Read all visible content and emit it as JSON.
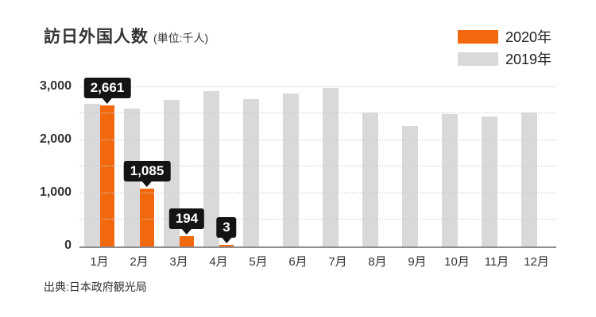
{
  "header": {
    "title": "訪日外国人数",
    "unit_note": "(単位:千人)"
  },
  "legend": {
    "position": "top-right",
    "items": [
      {
        "label": "2020年",
        "color": "#F2690D"
      },
      {
        "label": "2019年",
        "color": "#D9D9DB"
      }
    ]
  },
  "source": "出典:日本政府観光局",
  "chart_data": {
    "type": "bar",
    "title": "訪日外国人数",
    "unit": "千人",
    "categories": [
      "1月",
      "2月",
      "3月",
      "4月",
      "5月",
      "6月",
      "7月",
      "8月",
      "9月",
      "10月",
      "11月",
      "12月"
    ],
    "series": [
      {
        "name": "2020年",
        "color": "#F2690D",
        "values": [
          2661,
          1085,
          194,
          3,
          null,
          null,
          null,
          null,
          null,
          null,
          null,
          null
        ],
        "value_labels": [
          "2,661",
          "1,085",
          "194",
          "3",
          null,
          null,
          null,
          null,
          null,
          null,
          null,
          null
        ]
      },
      {
        "name": "2019年",
        "color": "#D9D9DB",
        "values": [
          2689,
          2604,
          2760,
          2927,
          2773,
          2880,
          2991,
          2520,
          2273,
          2497,
          2441,
          2526
        ]
      }
    ],
    "ylim": [
      0,
      3000
    ],
    "yticks": [
      {
        "value": 0,
        "label": "0"
      },
      {
        "value": 1000,
        "label": "1,000"
      },
      {
        "value": 2000,
        "label": "2,000"
      },
      {
        "value": 3000,
        "label": "3,000"
      }
    ],
    "gridlines": {
      "step": 500,
      "style": "dotted"
    },
    "legend_position": "top-right",
    "data_label_style": {
      "background": "#141414",
      "color": "#ffffff"
    }
  }
}
